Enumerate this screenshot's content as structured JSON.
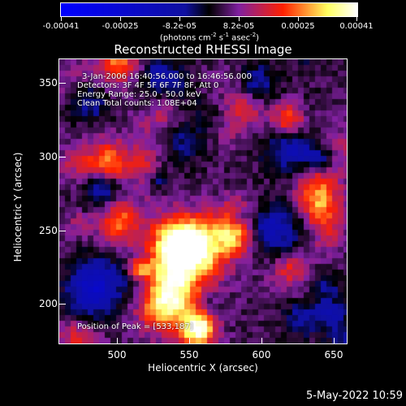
{
  "colorbar": {
    "tick_labels": [
      "-0.00041",
      "-0.00025",
      "-8.2e-05",
      "8.2e-05",
      "0.00025",
      "0.00041"
    ],
    "units": {
      "prefix": "(photons cm",
      "e1": "-2",
      "mid1": " s",
      "e2": "-1",
      "mid2": " asec",
      "e3": "-2",
      "suffix": ")"
    }
  },
  "title": "Reconstructed RHESSI Image",
  "annotations": {
    "time_range": "3-Jan-2006 16:40:56.000 to 16:46:56.000",
    "detectors": "Detectors: 3F 4F 5F 6F 7F 8F, Att 0",
    "energy": "Energy Range: 25.0 - 50.0 keV",
    "clean": "Clean    Total counts: 1.08E+04",
    "peak": "Position of Peak = [533,187]"
  },
  "footer": "5-May-2022 10:59",
  "chart_data": {
    "type": "heatmap",
    "title": "Reconstructed RHESSI Image",
    "xlabel": "Heliocentric X (arcsec)",
    "ylabel": "Heliocentric Y (arcsec)",
    "x_ticks": [
      500,
      550,
      600,
      650
    ],
    "y_ticks": [
      200,
      250,
      300,
      350
    ],
    "xlim": [
      463,
      660
    ],
    "ylim": [
      171,
      365
    ],
    "colorbar_range": [
      -0.00041,
      0.00041
    ],
    "peak_position": [
      533,
      187
    ],
    "colors": {
      "negative": "#0000ff",
      "zero": "#000000",
      "low": "#8020a0",
      "mid": "#ff2000",
      "high": "#ffff60",
      "max": "#ffffff"
    }
  }
}
